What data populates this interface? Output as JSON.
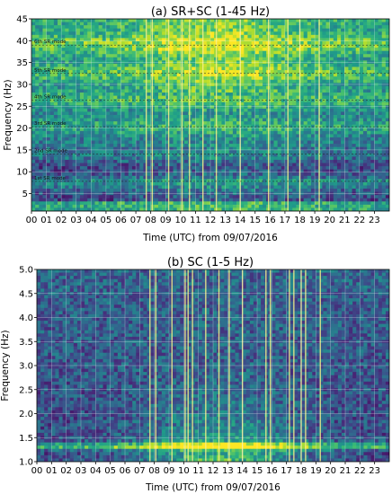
{
  "chart_data": [
    {
      "type": "heatmap",
      "title": "(a) SR+SC (1-45 Hz)",
      "xlabel": "Time (UTC) from 09/07/2016",
      "ylabel": "Frequency (Hz)",
      "x_ticks": [
        "00",
        "01",
        "02",
        "03",
        "04",
        "05",
        "06",
        "07",
        "08",
        "09",
        "10",
        "11",
        "12",
        "13",
        "14",
        "15",
        "16",
        "17",
        "18",
        "19",
        "20",
        "21",
        "22",
        "23"
      ],
      "xlim": [
        0,
        24
      ],
      "y_ticks": [
        "5",
        "10",
        "15",
        "20",
        "25",
        "30",
        "35",
        "40",
        "45"
      ],
      "ylim": [
        1,
        45
      ],
      "grid": true,
      "colormap": "viridis",
      "annotations": [
        {
          "label": "1st SR mode",
          "freq": 7.8
        },
        {
          "label": "2nd SR mode",
          "freq": 14.1
        },
        {
          "label": "3rd SR mode",
          "freq": 20.3
        },
        {
          "label": "4th SR mode",
          "freq": 26.4
        },
        {
          "label": "5th SR mode",
          "freq": 32.5
        },
        {
          "label": "6th SR mode",
          "freq": 39.0
        }
      ],
      "bands": [
        7.8,
        14.1,
        20.3,
        26.4,
        32.5,
        39.0
      ],
      "vertical_lines": [
        7.7,
        8.1,
        9.2,
        10.1,
        10.6,
        11.5,
        12.4,
        14.0,
        15.9,
        17.2,
        18.0,
        19.3
      ]
    },
    {
      "type": "heatmap",
      "title": "(b) SC (1-5 Hz)",
      "xlabel": "Time (UTC) from 09/07/2016",
      "ylabel": "Frequency (Hz)",
      "x_ticks": [
        "00",
        "01",
        "02",
        "03",
        "04",
        "05",
        "06",
        "07",
        "08",
        "09",
        "10",
        "11",
        "12",
        "13",
        "14",
        "15",
        "16",
        "17",
        "18",
        "19",
        "20",
        "21",
        "22",
        "23"
      ],
      "xlim": [
        0,
        24
      ],
      "y_ticks": [
        "1.0",
        "1.5",
        "2.0",
        "2.5",
        "3.0",
        "3.5",
        "4.0",
        "4.5",
        "5.0"
      ],
      "ylim": [
        1.0,
        5.0
      ],
      "grid": true,
      "colormap": "viridis",
      "bands": [
        1.32
      ],
      "vertical_lines": [
        7.7,
        8.1,
        9.2,
        10.1,
        10.3,
        10.6,
        11.5,
        12.4,
        13.1,
        14.0,
        15.6,
        15.9,
        17.2,
        17.5,
        18.0,
        18.3,
        19.3
      ]
    }
  ]
}
